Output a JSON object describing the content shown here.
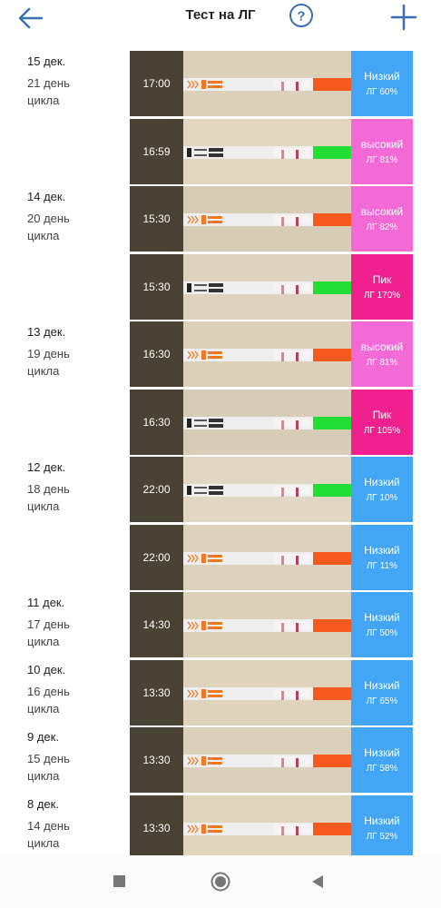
{
  "header": {
    "title": "Тест на ЛГ",
    "back_icon": "arrow-left-icon",
    "help_icon": "question-circle-icon",
    "add_icon": "plus-icon",
    "accent": "#3b6fb6"
  },
  "colors": {
    "low": "#42a5f5",
    "high": "#f36ad7",
    "peak": "#f0208f"
  },
  "days": [
    {
      "date": "15 дек.",
      "cycle": "21 день\nцикла"
    },
    {
      "date": "14 дек.",
      "cycle": "20 день\nцикла"
    },
    {
      "date": "13 дек.",
      "cycle": "19 день\nцикла"
    },
    {
      "date": "12 дек.",
      "cycle": "18 день\nцикла"
    },
    {
      "date": "11 дек.",
      "cycle": "17 день\nцикла"
    },
    {
      "date": "10 дек.",
      "cycle": "16 день\nцикла"
    },
    {
      "date": "9 дек.",
      "cycle": "15 день\nцикла"
    },
    {
      "date": "8 дек.",
      "cycle": "14 день\nцикла"
    }
  ],
  "tests": [
    {
      "time": "17:00",
      "label": "Низкий",
      "value": "ЛГ 60%",
      "level": "low",
      "brand": "orange"
    },
    {
      "time": "16:59",
      "label": "высокий",
      "value": "ЛГ 81%",
      "level": "high",
      "brand": "black"
    },
    {
      "time": "15:30",
      "label": "высокий",
      "value": "ЛГ 82%",
      "level": "high",
      "brand": "orange"
    },
    {
      "time": "15:30",
      "label": "Пик",
      "value": "ЛГ 170%",
      "level": "peak",
      "brand": "black"
    },
    {
      "time": "16:30",
      "label": "высокий",
      "value": "ЛГ 81%",
      "level": "high",
      "brand": "orange"
    },
    {
      "time": "16:30",
      "label": "Пик",
      "value": "ЛГ 105%",
      "level": "peak",
      "brand": "black"
    },
    {
      "time": "22:00",
      "label": "Низкий",
      "value": "ЛГ 10%",
      "level": "low",
      "brand": "black"
    },
    {
      "time": "22:00",
      "label": "Низкий",
      "value": "ЛГ 11%",
      "level": "low",
      "brand": "orange"
    },
    {
      "time": "14:30",
      "label": "Низкий",
      "value": "ЛГ 50%",
      "level": "low",
      "brand": "orange"
    },
    {
      "time": "13:30",
      "label": "Низкий",
      "value": "ЛГ 65%",
      "level": "low",
      "brand": "orange"
    },
    {
      "time": "13:30",
      "label": "Низкий",
      "value": "ЛГ 58%",
      "level": "low",
      "brand": "orange"
    },
    {
      "time": "13:30",
      "label": "Низкий",
      "value": "ЛГ 52%",
      "level": "low",
      "brand": "orange"
    }
  ],
  "navbar": {
    "recent_icon": "square-icon",
    "home_icon": "circle-icon",
    "back_icon": "triangle-back-icon"
  }
}
